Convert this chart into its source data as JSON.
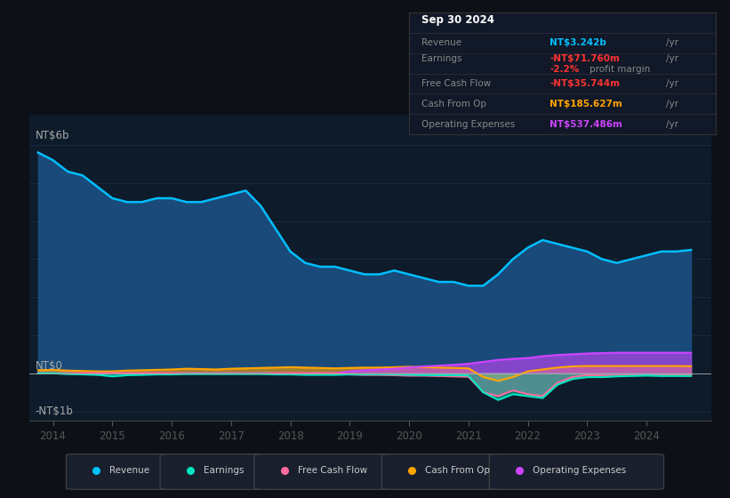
{
  "bg_color": "#0d1117",
  "plot_bg_color": "#0d1b2a",
  "grid_color": "#1e3a5f",
  "years": [
    2013.75,
    2014.0,
    2014.25,
    2014.5,
    2014.75,
    2015.0,
    2015.25,
    2015.5,
    2015.75,
    2016.0,
    2016.25,
    2016.5,
    2016.75,
    2017.0,
    2017.25,
    2017.5,
    2017.75,
    2018.0,
    2018.25,
    2018.5,
    2018.75,
    2019.0,
    2019.25,
    2019.5,
    2019.75,
    2020.0,
    2020.25,
    2020.5,
    2020.75,
    2021.0,
    2021.25,
    2021.5,
    2021.75,
    2022.0,
    2022.25,
    2022.5,
    2022.75,
    2023.0,
    2023.25,
    2023.5,
    2023.75,
    2024.0,
    2024.25,
    2024.5,
    2024.75
  ],
  "revenue": [
    5.8,
    5.6,
    5.3,
    5.2,
    4.9,
    4.6,
    4.5,
    4.5,
    4.6,
    4.6,
    4.5,
    4.5,
    4.6,
    4.7,
    4.8,
    4.4,
    3.8,
    3.2,
    2.9,
    2.8,
    2.8,
    2.7,
    2.6,
    2.6,
    2.7,
    2.6,
    2.5,
    2.4,
    2.4,
    2.3,
    2.3,
    2.6,
    3.0,
    3.3,
    3.5,
    3.4,
    3.3,
    3.2,
    3.0,
    2.9,
    3.0,
    3.1,
    3.2,
    3.2,
    3.242
  ],
  "earnings": [
    0.0,
    0.0,
    -0.02,
    -0.03,
    -0.04,
    -0.08,
    -0.05,
    -0.04,
    -0.03,
    -0.03,
    -0.02,
    -0.02,
    -0.02,
    -0.02,
    -0.02,
    -0.02,
    -0.03,
    -0.03,
    -0.04,
    -0.04,
    -0.04,
    -0.03,
    -0.03,
    -0.03,
    -0.03,
    -0.04,
    -0.05,
    -0.05,
    -0.05,
    -0.06,
    -0.5,
    -0.7,
    -0.55,
    -0.6,
    -0.65,
    -0.3,
    -0.15,
    -0.1,
    -0.1,
    -0.08,
    -0.07,
    -0.06,
    -0.07,
    -0.07,
    -0.07176
  ],
  "free_cash_flow": [
    0.0,
    0.0,
    0.0,
    0.0,
    0.0,
    0.0,
    0.0,
    0.0,
    0.0,
    0.0,
    0.0,
    0.0,
    0.0,
    0.0,
    0.0,
    0.0,
    0.0,
    0.0,
    0.0,
    0.0,
    0.0,
    -0.03,
    -0.04,
    -0.04,
    -0.05,
    -0.06,
    -0.06,
    -0.07,
    -0.08,
    -0.09,
    -0.5,
    -0.6,
    -0.45,
    -0.55,
    -0.6,
    -0.25,
    -0.1,
    -0.05,
    -0.06,
    -0.06,
    -0.05,
    -0.04,
    -0.04,
    -0.04,
    -0.03574
  ],
  "cash_from_op": [
    0.08,
    0.09,
    0.07,
    0.06,
    0.05,
    0.05,
    0.07,
    0.08,
    0.09,
    0.1,
    0.12,
    0.11,
    0.1,
    0.12,
    0.13,
    0.14,
    0.15,
    0.16,
    0.15,
    0.14,
    0.13,
    0.14,
    0.15,
    0.15,
    0.16,
    0.17,
    0.16,
    0.15,
    0.14,
    0.13,
    -0.1,
    -0.2,
    -0.1,
    0.05,
    0.1,
    0.15,
    0.18,
    0.19,
    0.19,
    0.19,
    0.19,
    0.19,
    0.19,
    0.19,
    0.185627
  ],
  "op_expenses": [
    0.0,
    0.0,
    0.0,
    0.0,
    0.0,
    0.0,
    0.0,
    0.0,
    0.0,
    0.0,
    0.0,
    0.0,
    0.0,
    0.0,
    0.0,
    0.0,
    0.0,
    0.0,
    0.0,
    0.0,
    0.0,
    0.05,
    0.08,
    0.1,
    0.12,
    0.15,
    0.18,
    0.2,
    0.22,
    0.25,
    0.3,
    0.35,
    0.38,
    0.4,
    0.45,
    0.48,
    0.5,
    0.52,
    0.53,
    0.54,
    0.54,
    0.54,
    0.54,
    0.54,
    0.537486
  ],
  "revenue_color": "#00bfff",
  "earnings_color": "#00e5c0",
  "fcf_color": "#ff6b9d",
  "cash_op_color": "#ffa500",
  "op_exp_color": "#cc44ff",
  "revenue_fill": "#1a4a7a",
  "ylim_min": -1.25,
  "ylim_max": 6.8,
  "xticks": [
    2014,
    2015,
    2016,
    2017,
    2018,
    2019,
    2020,
    2021,
    2022,
    2023,
    2024
  ]
}
